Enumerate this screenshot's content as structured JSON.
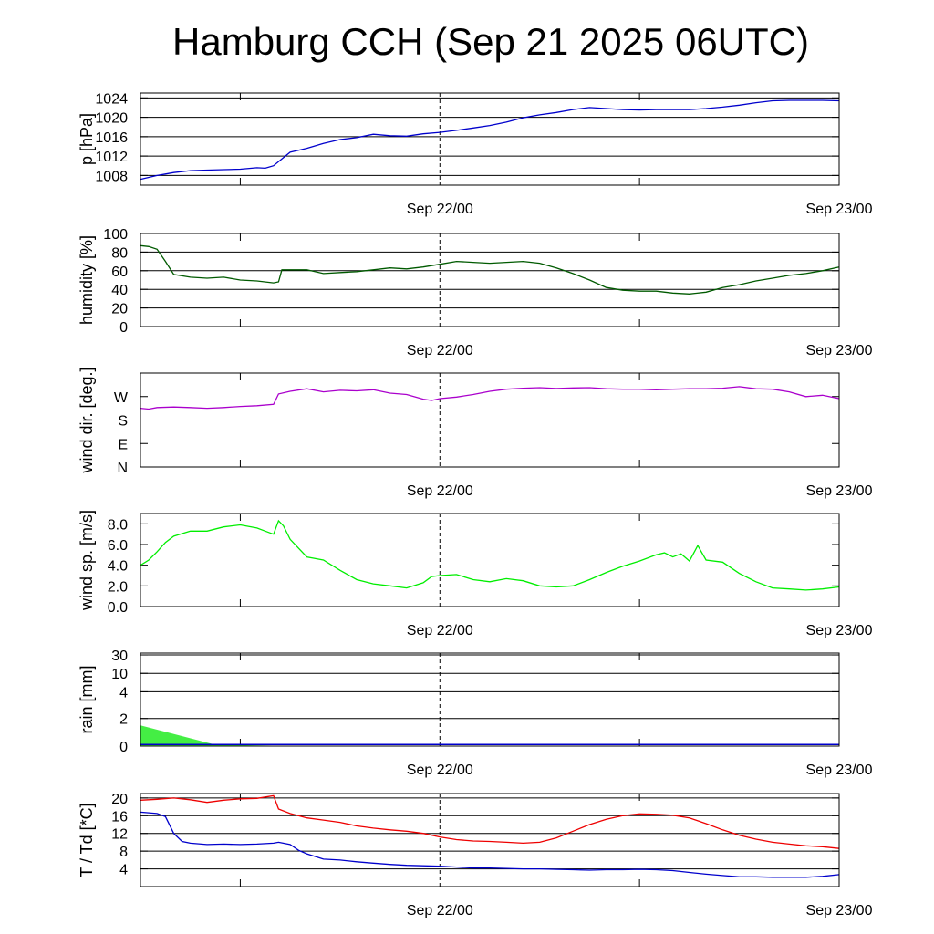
{
  "title": "Hamburg CCH (Sep 21 2025 06UTC)",
  "x_axis": {
    "start_hour": 0,
    "end_hour": 42,
    "unit": "hours after Sep 21 2025 06UTC",
    "date_labels": [
      {
        "hour": 18,
        "text": "Sep 22/00"
      },
      {
        "hour": 42,
        "text": "Sep 23/00"
      }
    ],
    "minor_tick_hours": [
      6,
      30
    ],
    "dashed_line_hour": 18
  },
  "colors": {
    "pressure": "#0000cc",
    "humidity": "#005a00",
    "wind_dir": "#aa00cc",
    "wind_speed": "#00ee00",
    "rain_fill": "#44ee44",
    "rain_line": "#0000cc",
    "temperature": "#ee0000",
    "dewpoint": "#0000cc"
  },
  "chart_data": [
    {
      "type": "line",
      "name": "pressure",
      "ylabel": "p [hPa]",
      "ylim": [
        1006,
        1025
      ],
      "ticks": [
        1008,
        1012,
        1016,
        1020,
        1024
      ],
      "grid": true,
      "series": [
        {
          "x": [
            0,
            0.5,
            1,
            1.5,
            2,
            3,
            4,
            5,
            6,
            7,
            7.5,
            8,
            8.5,
            9,
            10,
            11,
            12,
            13,
            14,
            15,
            16,
            17,
            18,
            19,
            20,
            21,
            22,
            23,
            24,
            25,
            26,
            27,
            28,
            29,
            30,
            31,
            32,
            33,
            34,
            35,
            36,
            37,
            38,
            39,
            40,
            41,
            42
          ],
          "y": [
            1007.2,
            1007.6,
            1008.0,
            1008.3,
            1008.6,
            1009.0,
            1009.1,
            1009.2,
            1009.3,
            1009.6,
            1009.5,
            1010.0,
            1011.4,
            1012.8,
            1013.6,
            1014.6,
            1015.4,
            1015.8,
            1016.5,
            1016.2,
            1016.1,
            1016.6,
            1016.9,
            1017.3,
            1017.8,
            1018.3,
            1019.0,
            1019.9,
            1020.5,
            1021.0,
            1021.6,
            1022.0,
            1021.8,
            1021.6,
            1021.5,
            1021.6,
            1021.6,
            1021.6,
            1021.8,
            1022.1,
            1022.5,
            1023.0,
            1023.4,
            1023.5,
            1023.5,
            1023.5,
            1023.4
          ]
        }
      ]
    },
    {
      "type": "line",
      "name": "humidity",
      "ylabel": "humidity [%]",
      "ylim": [
        0,
        100
      ],
      "ticks": [
        0,
        20,
        40,
        60,
        80,
        100
      ],
      "grid": true,
      "series": [
        {
          "x": [
            0,
            0.5,
            1,
            1.5,
            2,
            3,
            4,
            5,
            6,
            7,
            8,
            8.3,
            8.5,
            9,
            10,
            11,
            12,
            13,
            14,
            15,
            16,
            17,
            18,
            19,
            20,
            21,
            22,
            23,
            24,
            25,
            26,
            27,
            28,
            29,
            30,
            31,
            32,
            33,
            34,
            35,
            36,
            37,
            38,
            39,
            40,
            41,
            42
          ],
          "y": [
            87,
            86,
            83,
            70,
            56,
            53,
            52,
            53,
            50,
            49,
            47,
            48,
            61,
            61,
            61,
            57,
            58,
            59,
            61,
            63,
            62,
            64,
            67,
            70,
            69,
            68,
            69,
            70,
            68,
            63,
            57,
            50,
            42,
            39,
            38,
            38,
            36,
            35,
            37,
            42,
            45,
            49,
            52,
            55,
            57,
            60,
            64
          ]
        }
      ]
    },
    {
      "type": "line",
      "name": "wind direction",
      "ylabel": "wind dir. [deg.]",
      "ylim": [
        0,
        360
      ],
      "ticks": [
        0,
        90,
        180,
        270
      ],
      "tick_labels": [
        "N",
        "E",
        "S",
        "W"
      ],
      "grid": false,
      "series": [
        {
          "x": [
            0,
            0.5,
            1,
            2,
            3,
            4,
            5,
            6,
            7,
            8,
            8.3,
            9,
            10,
            11,
            12,
            13,
            14,
            15,
            16,
            17,
            17.5,
            18,
            19,
            20,
            21,
            22,
            23,
            24,
            25,
            26,
            27,
            28,
            29,
            30,
            31,
            32,
            33,
            34,
            35,
            36,
            37,
            38,
            39,
            40,
            41,
            42
          ],
          "y": [
            225,
            222,
            228,
            230,
            228,
            225,
            228,
            232,
            235,
            240,
            280,
            290,
            300,
            288,
            294,
            292,
            296,
            283,
            278,
            260,
            255,
            262,
            268,
            278,
            290,
            298,
            302,
            304,
            301,
            303,
            304,
            300,
            298,
            298,
            296,
            298,
            300,
            300,
            302,
            308,
            300,
            298,
            288,
            270,
            275,
            262
          ]
        }
      ]
    },
    {
      "type": "line",
      "name": "wind speed",
      "ylabel": "wind sp. [m/s]",
      "ylim": [
        0,
        9
      ],
      "ticks": [
        0,
        2,
        4,
        6,
        8
      ],
      "tick_labels": [
        "0.0",
        "2.0",
        "4.0",
        "6.0",
        "8.0"
      ],
      "grid": false,
      "series": [
        {
          "x": [
            0,
            0.5,
            1,
            1.5,
            2,
            3,
            4,
            5,
            6,
            7,
            7.5,
            8,
            8.3,
            8.6,
            9,
            10,
            11,
            12,
            13,
            14,
            15,
            16,
            17,
            17.5,
            18,
            19,
            20,
            21,
            22,
            23,
            24,
            25,
            26,
            27,
            28,
            29,
            30,
            31,
            31.5,
            32,
            32.5,
            33,
            33.5,
            34,
            35,
            36,
            37,
            38,
            39,
            40,
            41,
            42
          ],
          "y": [
            4.0,
            4.5,
            5.3,
            6.2,
            6.8,
            7.3,
            7.3,
            7.7,
            7.9,
            7.6,
            7.3,
            7.0,
            8.3,
            7.8,
            6.5,
            4.8,
            4.5,
            3.5,
            2.6,
            2.2,
            2.0,
            1.8,
            2.3,
            2.9,
            3.0,
            3.1,
            2.6,
            2.4,
            2.7,
            2.5,
            2.0,
            1.9,
            2.0,
            2.6,
            3.3,
            3.9,
            4.4,
            5.0,
            5.2,
            4.8,
            5.1,
            4.4,
            5.9,
            4.5,
            4.3,
            3.2,
            2.4,
            1.8,
            1.7,
            1.6,
            1.7,
            1.9
          ]
        }
      ]
    },
    {
      "type": "area",
      "name": "rain",
      "ylabel": "rain [mm]",
      "ticks": [
        0,
        2,
        4,
        10,
        30
      ],
      "tick_labels": [
        "0",
        "2",
        "4",
        "10",
        "30"
      ],
      "grid": true,
      "series": [
        {
          "name": "precipitation",
          "x": [
            0,
            4.5,
            9.5
          ],
          "y": [
            1.5,
            0.1,
            0.0
          ]
        },
        {
          "name": "baseline",
          "x": [
            0,
            42
          ],
          "y": [
            0.05,
            0.05
          ]
        }
      ]
    },
    {
      "type": "line",
      "name": "temperature",
      "ylabel": "T / Td [*C]",
      "ylim": [
        0,
        21
      ],
      "ticks": [
        4,
        8,
        12,
        16,
        20
      ],
      "grid": true,
      "series": [
        {
          "name": "T",
          "x": [
            0,
            1,
            2,
            3,
            4,
            5,
            6,
            7,
            8,
            8.3,
            9,
            10,
            11,
            12,
            13,
            14,
            15,
            16,
            17,
            18,
            19,
            20,
            21,
            22,
            23,
            24,
            25,
            26,
            27,
            28,
            29,
            30,
            31,
            32,
            33,
            34,
            35,
            36,
            37,
            38,
            39,
            40,
            41,
            42
          ],
          "y": [
            19.5,
            19.7,
            20.0,
            19.6,
            19.0,
            19.5,
            19.8,
            19.9,
            20.5,
            17.5,
            16.5,
            15.5,
            15.0,
            14.5,
            13.7,
            13.2,
            12.8,
            12.5,
            12.0,
            11.2,
            10.6,
            10.3,
            10.2,
            10.0,
            9.8,
            10.0,
            11.0,
            12.5,
            14.0,
            15.2,
            16.0,
            16.4,
            16.3,
            16.1,
            15.5,
            14.2,
            12.8,
            11.6,
            10.7,
            10.0,
            9.6,
            9.2,
            9.0,
            8.6
          ]
        },
        {
          "name": "Td",
          "x": [
            0,
            1,
            1.5,
            2,
            2.5,
            3,
            4,
            5,
            6,
            7,
            8,
            8.3,
            9,
            9.5,
            10,
            11,
            12,
            13,
            14,
            15,
            16,
            17,
            18,
            19,
            20,
            21,
            22,
            23,
            24,
            25,
            26,
            27,
            28,
            29,
            30,
            31,
            32,
            33,
            34,
            35,
            36,
            37,
            38,
            39,
            40,
            41,
            42
          ],
          "y": [
            16.8,
            16.5,
            15.8,
            12.0,
            10.2,
            9.8,
            9.5,
            9.6,
            9.5,
            9.6,
            9.8,
            10.0,
            9.5,
            8.2,
            7.4,
            6.2,
            6.0,
            5.6,
            5.3,
            5.0,
            4.8,
            4.7,
            4.6,
            4.4,
            4.2,
            4.2,
            4.1,
            4.0,
            4.0,
            3.9,
            3.8,
            3.7,
            3.8,
            3.8,
            3.9,
            3.8,
            3.6,
            3.2,
            2.8,
            2.5,
            2.2,
            2.2,
            2.1,
            2.1,
            2.1,
            2.3,
            2.7
          ]
        }
      ]
    }
  ]
}
